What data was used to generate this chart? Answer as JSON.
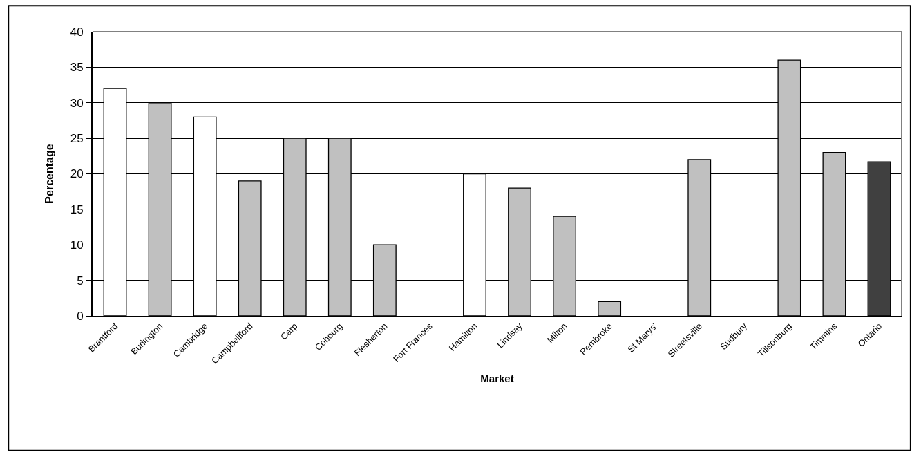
{
  "chart_data": {
    "type": "bar",
    "xlabel": "Market",
    "ylabel": "Percentage",
    "categories": [
      "Brantford",
      "Burlington",
      "Cambridge",
      "Campbellford",
      "Carp",
      "Cobourg",
      "Flesherton",
      "Fort Frances",
      "Hamilton",
      "Lindsay",
      "Milton",
      "Pembroke",
      "St Marys'",
      "Streetsville",
      "Sudbury",
      "Tillsonburg",
      "Timmins",
      "Ontario"
    ],
    "values": [
      32,
      30,
      28,
      19,
      25,
      25,
      10,
      null,
      20,
      18,
      14,
      2,
      null,
      22,
      null,
      36,
      23,
      21.7
    ],
    "colors": [
      "#ffffff",
      "#c0c0c0",
      "#ffffff",
      "#c0c0c0",
      "#c0c0c0",
      "#c0c0c0",
      "#c0c0c0",
      "#c0c0c0",
      "#ffffff",
      "#c0c0c0",
      "#c0c0c0",
      "#c0c0c0",
      "#c0c0c0",
      "#c0c0c0",
      "#c0c0c0",
      "#c0c0c0",
      "#c0c0c0",
      "#404040"
    ],
    "ylim": [
      0,
      40
    ],
    "yticks": [
      0,
      5,
      10,
      15,
      20,
      25,
      30,
      35,
      40
    ],
    "grid": "y"
  }
}
